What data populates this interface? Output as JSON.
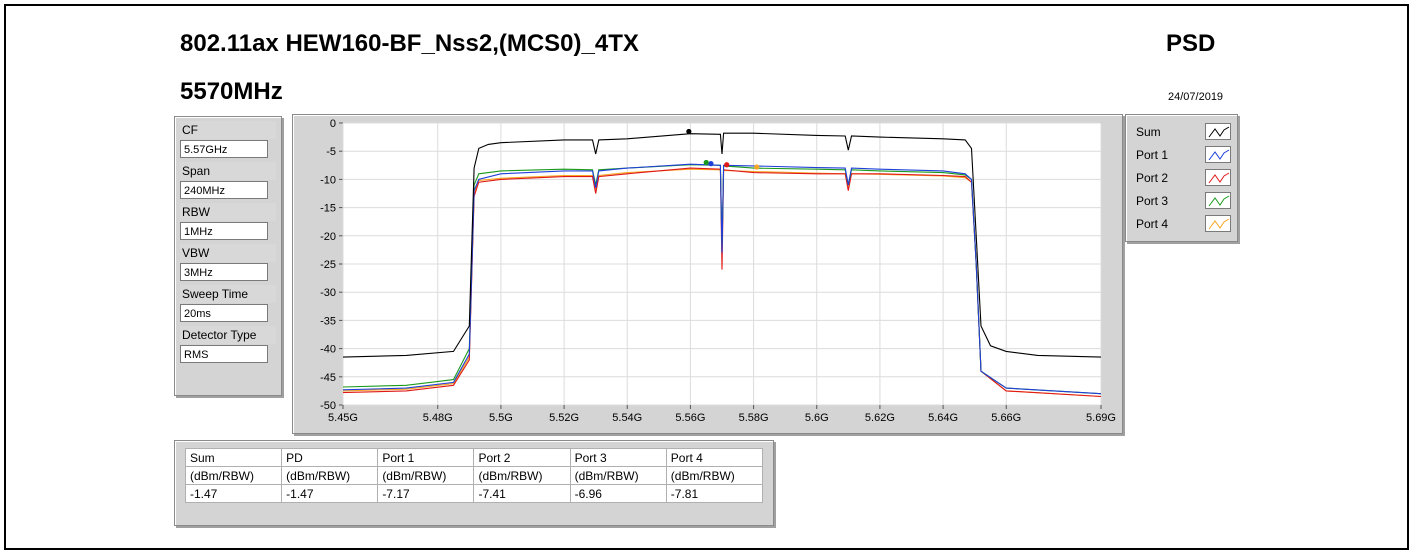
{
  "header": {
    "title": "802.11ax HEW160-BF_Nss2,(MCS0)_4TX",
    "subtitle": "5570MHz",
    "mode": "PSD",
    "date": "24/07/2019"
  },
  "settings": {
    "cf_label": "CF",
    "cf_value": "5.57GHz",
    "span_label": "Span",
    "span_value": "240MHz",
    "rbw_label": "RBW",
    "rbw_value": "1MHz",
    "vbw_label": "VBW",
    "vbw_value": "3MHz",
    "sweep_label": "Sweep Time",
    "sweep_value": "20ms",
    "detector_label": "Detector Type",
    "detector_value": "RMS"
  },
  "legend": {
    "items": [
      "Sum",
      "Port 1",
      "Port 2",
      "Port 3",
      "Port 4"
    ]
  },
  "colors": {
    "sum": "#000000",
    "port1": "#1f3fd8",
    "port2": "#e01818",
    "port3": "#1a9a1a",
    "port4": "#f5a623"
  },
  "results": {
    "headers": [
      "Sum",
      "PD",
      "Port 1",
      "Port 2",
      "Port 3",
      "Port 4"
    ],
    "units": [
      "(dBm/RBW)",
      "(dBm/RBW)",
      "(dBm/RBW)",
      "(dBm/RBW)",
      "(dBm/RBW)",
      "(dBm/RBW)"
    ],
    "values": [
      "-1.47",
      "-1.47",
      "-7.17",
      "-7.41",
      "-6.96",
      "-7.81"
    ]
  },
  "chart_data": {
    "type": "line",
    "title": "",
    "xlabel": "",
    "ylabel": "",
    "xlim": [
      5.45,
      5.69
    ],
    "ylim": [
      -50,
      0
    ],
    "x_ticks": [
      "5.45G",
      "5.48G",
      "5.5G",
      "5.52G",
      "5.54G",
      "5.56G",
      "5.58G",
      "5.6G",
      "5.62G",
      "5.64G",
      "5.66G",
      "5.69G"
    ],
    "x_tick_values": [
      5.45,
      5.48,
      5.5,
      5.52,
      5.54,
      5.56,
      5.58,
      5.6,
      5.62,
      5.64,
      5.66,
      5.69
    ],
    "y_ticks": [
      "0",
      "-5",
      "-10",
      "-15",
      "-20",
      "-25",
      "-30",
      "-35",
      "-40",
      "-45",
      "-50"
    ],
    "y_tick_values": [
      0,
      -5,
      -10,
      -15,
      -20,
      -25,
      -30,
      -35,
      -40,
      -45,
      -50
    ],
    "grid": true,
    "legend_position": "right",
    "series": [
      {
        "name": "Sum",
        "x": [
          5.45,
          5.47,
          5.485,
          5.49,
          5.4915,
          5.493,
          5.496,
          5.5,
          5.52,
          5.529,
          5.53,
          5.531,
          5.54,
          5.56,
          5.5695,
          5.57,
          5.5705,
          5.58,
          5.6,
          5.609,
          5.61,
          5.611,
          5.62,
          5.64,
          5.647,
          5.649,
          5.6505,
          5.652,
          5.655,
          5.66,
          5.67,
          5.69
        ],
        "y": [
          -41.5,
          -41.2,
          -40.5,
          -36,
          -8,
          -4.5,
          -3.8,
          -3.5,
          -3,
          -3,
          -5.5,
          -3,
          -2.8,
          -1.9,
          -2,
          -5.5,
          -1.8,
          -1.8,
          -2.2,
          -2.3,
          -4.8,
          -2.3,
          -2.5,
          -2.8,
          -3,
          -4.5,
          -20,
          -36,
          -39.5,
          -40.5,
          -41.2,
          -41.5
        ]
      },
      {
        "name": "Port 1",
        "x": [
          5.45,
          5.47,
          5.485,
          5.49,
          5.4915,
          5.493,
          5.5,
          5.52,
          5.529,
          5.53,
          5.531,
          5.54,
          5.56,
          5.5695,
          5.57,
          5.5705,
          5.58,
          5.6,
          5.609,
          5.61,
          5.611,
          5.62,
          5.64,
          5.647,
          5.649,
          5.6505,
          5.652,
          5.66,
          5.69
        ],
        "y": [
          -47.3,
          -47,
          -46,
          -41,
          -12,
          -10,
          -9,
          -8.5,
          -8.5,
          -11.5,
          -8.5,
          -8,
          -7.3,
          -7.5,
          -23,
          -7.5,
          -7.6,
          -7.9,
          -8,
          -11,
          -8,
          -8.2,
          -8.5,
          -9,
          -10,
          -25,
          -44,
          -47,
          -48
        ]
      },
      {
        "name": "Port 2",
        "x": [
          5.45,
          5.47,
          5.485,
          5.49,
          5.4915,
          5.493,
          5.5,
          5.52,
          5.529,
          5.53,
          5.531,
          5.54,
          5.56,
          5.5695,
          5.57,
          5.5705,
          5.58,
          5.6,
          5.609,
          5.61,
          5.611,
          5.62,
          5.64,
          5.647,
          5.649,
          5.6505,
          5.652,
          5.66,
          5.69
        ],
        "y": [
          -47.8,
          -47.5,
          -46.5,
          -42,
          -13,
          -10.5,
          -10,
          -9.5,
          -9.5,
          -12.5,
          -9.5,
          -9,
          -8,
          -8.2,
          -26,
          -8.3,
          -8.8,
          -9,
          -9,
          -12,
          -9,
          -9,
          -9.3,
          -9.5,
          -10.5,
          -25,
          -44,
          -47.5,
          -48.5
        ]
      },
      {
        "name": "Port 3",
        "x": [
          5.45,
          5.47,
          5.485,
          5.49,
          5.4915,
          5.493,
          5.5,
          5.52,
          5.529,
          5.53,
          5.531,
          5.54,
          5.56,
          5.5695,
          5.57,
          5.5705,
          5.58,
          5.6,
          5.609,
          5.61,
          5.611,
          5.62,
          5.64,
          5.647,
          5.649,
          5.6505,
          5.652,
          5.66,
          5.69
        ],
        "y": [
          -46.8,
          -46.5,
          -45.5,
          -40,
          -11,
          -9,
          -8.5,
          -8.2,
          -8.3,
          -11,
          -8.3,
          -8,
          -7.4,
          -7.5,
          -22,
          -7.6,
          -8,
          -8.2,
          -8.3,
          -11,
          -8.3,
          -8.5,
          -8.8,
          -9.2,
          -10,
          -25,
          -44,
          -47,
          -48
        ]
      },
      {
        "name": "Port 4",
        "x": [
          5.45,
          5.47,
          5.485,
          5.49,
          5.4915,
          5.493,
          5.5,
          5.52,
          5.529,
          5.53,
          5.531,
          5.54,
          5.56,
          5.5695,
          5.57,
          5.5705,
          5.58,
          5.6,
          5.609,
          5.61,
          5.611,
          5.62,
          5.64,
          5.647,
          5.649,
          5.6505,
          5.652,
          5.66,
          5.69
        ],
        "y": [
          -47.5,
          -47.2,
          -46.2,
          -41.5,
          -12.5,
          -10.2,
          -9.8,
          -9.3,
          -9.3,
          -12,
          -9.3,
          -8.8,
          -8.2,
          -8.3,
          -21,
          -8.4,
          -8.6,
          -8.9,
          -9,
          -11.5,
          -9,
          -9.1,
          -9.4,
          -9.7,
          -10.5,
          -25,
          -44,
          -47.5,
          -48.5
        ]
      }
    ],
    "markers": [
      {
        "series": "Sum",
        "x": 5.5595,
        "y": -1.5
      },
      {
        "series": "Port 1",
        "x": 5.5665,
        "y": -7.2
      },
      {
        "series": "Port 3",
        "x": 5.565,
        "y": -7.0
      },
      {
        "series": "Port 2",
        "x": 5.5715,
        "y": -7.4
      },
      {
        "series": "Port 4",
        "x": 5.581,
        "y": -7.8
      }
    ]
  }
}
